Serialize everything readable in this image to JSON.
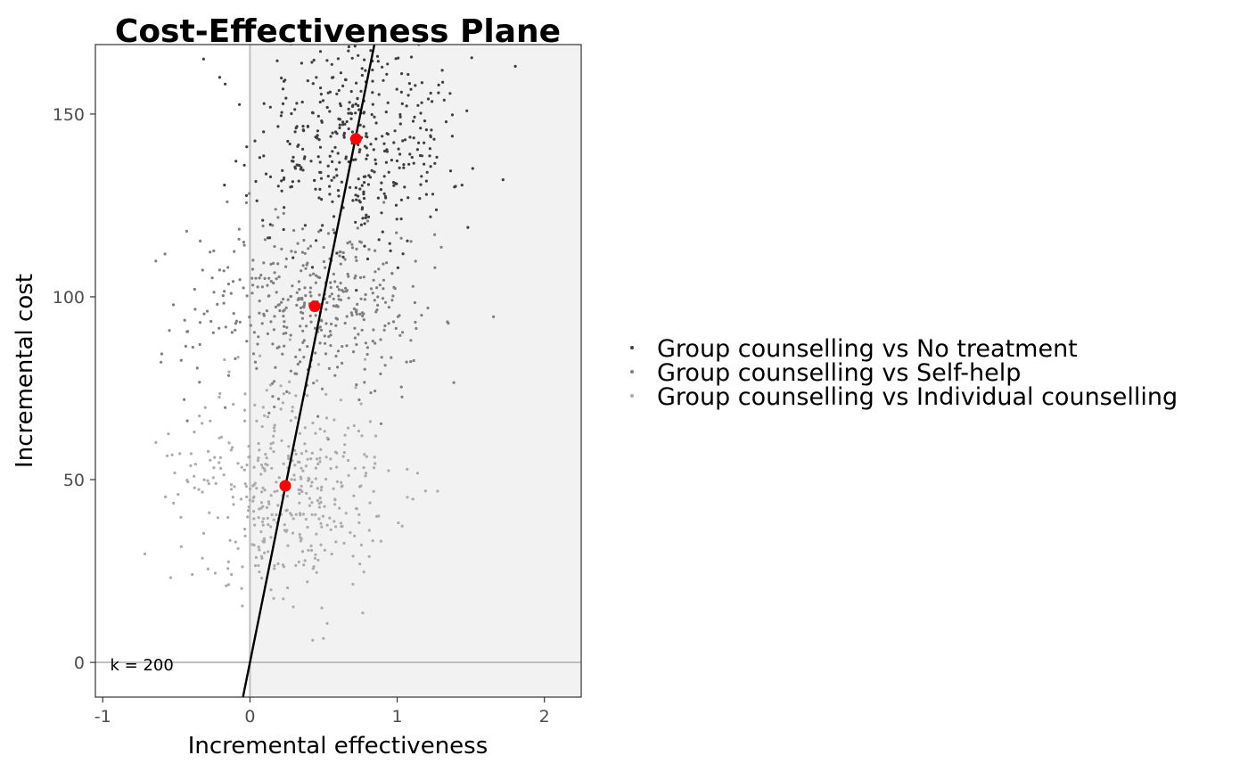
{
  "chart_data": {
    "type": "scatter",
    "title": "Cost-Effectiveness Plane",
    "xlabel": "Incremental effectiveness",
    "ylabel": "Incremental cost",
    "xlim": [
      -1.05,
      2.25
    ],
    "ylim": [
      -9.5,
      169
    ],
    "x_ticks": [
      -1,
      0,
      1,
      2
    ],
    "x_tick_labels": [
      "-1",
      "0",
      "1",
      "2"
    ],
    "y_ticks": [
      0,
      50,
      100,
      150
    ],
    "y_tick_labels": [
      "0",
      "50",
      "100",
      "150"
    ],
    "wtp_label": "k = 200",
    "wtp_threshold": 200,
    "sustainability_region": {
      "x_min": 0,
      "fill": "#f2f2f2"
    },
    "reference_lines": {
      "x": 0,
      "y": 0,
      "color": "#bebebe"
    },
    "grid": false,
    "legend_position": "right",
    "series": [
      {
        "name": "Group counselling vs No treatment",
        "color": "#3f3f3f",
        "center": [
          0.72,
          143
        ],
        "spread": [
          0.36,
          15
        ],
        "n": 420,
        "mean": {
          "x": 0.72,
          "y": 143.2,
          "color": "#ff0000"
        }
      },
      {
        "name": "Group counselling vs Self-help",
        "color": "#7f7f7f",
        "center": [
          0.43,
          97
        ],
        "spread": [
          0.42,
          13
        ],
        "n": 420,
        "mean": {
          "x": 0.44,
          "y": 97.4,
          "color": "#ff0000"
        }
      },
      {
        "name": "Group counselling vs Individual counselling",
        "color": "#ababab",
        "center": [
          0.24,
          48
        ],
        "spread": [
          0.36,
          14
        ],
        "n": 420,
        "mean": {
          "x": 0.24,
          "y": 48.3,
          "color": "#ff0000"
        }
      }
    ]
  }
}
